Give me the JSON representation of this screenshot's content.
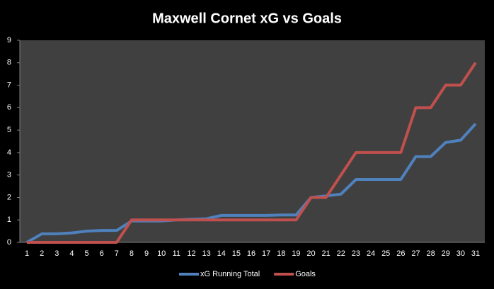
{
  "chart_data": {
    "type": "line",
    "title": "Maxwell Cornet xG vs Goals",
    "categories": [
      1,
      2,
      3,
      4,
      5,
      6,
      7,
      8,
      9,
      10,
      11,
      12,
      13,
      14,
      15,
      16,
      17,
      18,
      19,
      20,
      21,
      22,
      23,
      24,
      25,
      26,
      27,
      28,
      29,
      30,
      31
    ],
    "series": [
      {
        "name": "xG Running Total",
        "color": "#4f81bd",
        "values": [
          0,
          0.38,
          0.38,
          0.42,
          0.5,
          0.53,
          0.53,
          0.95,
          0.95,
          0.95,
          1.0,
          1.03,
          1.05,
          1.2,
          1.2,
          1.2,
          1.2,
          1.22,
          1.22,
          2.0,
          2.07,
          2.15,
          2.8,
          2.8,
          2.8,
          2.8,
          3.82,
          3.82,
          4.45,
          4.55,
          5.28
        ]
      },
      {
        "name": "Goals",
        "color": "#c0504d",
        "values": [
          0,
          0,
          0,
          0,
          0,
          0,
          0,
          1,
          1,
          1,
          1,
          1,
          1,
          1,
          1,
          1,
          1,
          1,
          1,
          2,
          2,
          3,
          4,
          4,
          4,
          4,
          6,
          6,
          7,
          7,
          8
        ]
      }
    ],
    "ylim": [
      0,
      9
    ],
    "yticks": [
      0,
      1,
      2,
      3,
      4,
      5,
      6,
      7,
      8,
      9
    ],
    "grid": false,
    "legend": "bottom"
  }
}
